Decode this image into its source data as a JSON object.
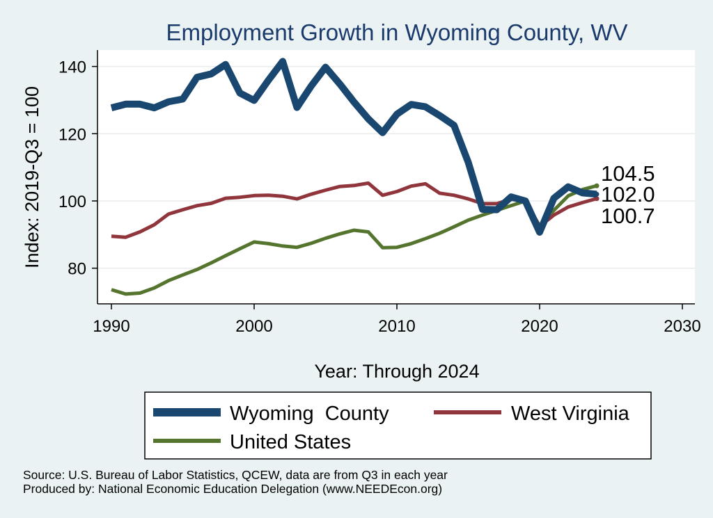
{
  "chart_data": {
    "type": "line",
    "title": "Employment Growth in Wyoming County, WV",
    "xlabel": "Year: Through 2024",
    "ylabel": "Index: 2019-Q3 = 100",
    "xlim": [
      1990,
      2030
    ],
    "ylim": [
      68,
      147
    ],
    "xticks": [
      1990,
      2000,
      2010,
      2020,
      2030
    ],
    "yticks": [
      80,
      100,
      120,
      140
    ],
    "grid": true,
    "legend_position": "bottom",
    "title_color": "#1a3a6b",
    "x": [
      1990,
      1991,
      1992,
      1993,
      1994,
      1995,
      1996,
      1997,
      1998,
      1999,
      2000,
      2001,
      2002,
      2003,
      2004,
      2005,
      2006,
      2007,
      2008,
      2009,
      2010,
      2011,
      2012,
      2013,
      2014,
      2015,
      2016,
      2017,
      2018,
      2019,
      2020,
      2021,
      2022,
      2023,
      2024
    ],
    "series": [
      {
        "name": "Wyoming  County",
        "color": "#1a476f",
        "values": [
          127.7,
          128.8,
          128.8,
          127.7,
          129.5,
          130.3,
          136.8,
          137.8,
          140.6,
          132.1,
          129.9,
          135.9,
          141.5,
          127.8,
          134.2,
          139.8,
          134.8,
          129.4,
          124.4,
          120.3,
          125.8,
          128.7,
          128.0,
          125.4,
          122.5,
          111.5,
          97.5,
          97.4,
          101.2,
          100.0,
          90.7,
          100.8,
          104.2,
          102.4,
          102.0
        ]
      },
      {
        "name": "West Virginia",
        "color": "#90353b",
        "values": [
          89.5,
          89.2,
          90.8,
          92.9,
          96.1,
          97.4,
          98.6,
          99.3,
          100.8,
          101.1,
          101.6,
          101.7,
          101.4,
          100.6,
          102.0,
          103.2,
          104.3,
          104.6,
          105.3,
          101.7,
          102.8,
          104.4,
          105.1,
          102.3,
          101.7,
          100.6,
          99.2,
          99.2,
          100.5,
          100.0,
          92.4,
          95.8,
          98.2,
          99.5,
          100.7
        ]
      },
      {
        "name": "United States",
        "color": "#55752f",
        "values": [
          73.6,
          72.3,
          72.6,
          74.1,
          76.3,
          78.0,
          79.6,
          81.6,
          83.7,
          85.8,
          87.8,
          87.3,
          86.6,
          86.2,
          87.4,
          88.9,
          90.2,
          91.3,
          90.8,
          86.1,
          86.2,
          87.3,
          88.8,
          90.4,
          92.3,
          94.3,
          95.8,
          97.2,
          98.6,
          100.0,
          92.6,
          97.2,
          101.5,
          103.4,
          104.5
        ]
      }
    ],
    "end_labels": [
      "104.5",
      "102.0",
      "100.7"
    ],
    "sources": [
      "Source: U.S. Bureau of Labor Statistics, QCEW, data are from Q3 in each year",
      "Produced by: National Economic Education Delegation (www.NEEDEcon.org)"
    ]
  }
}
